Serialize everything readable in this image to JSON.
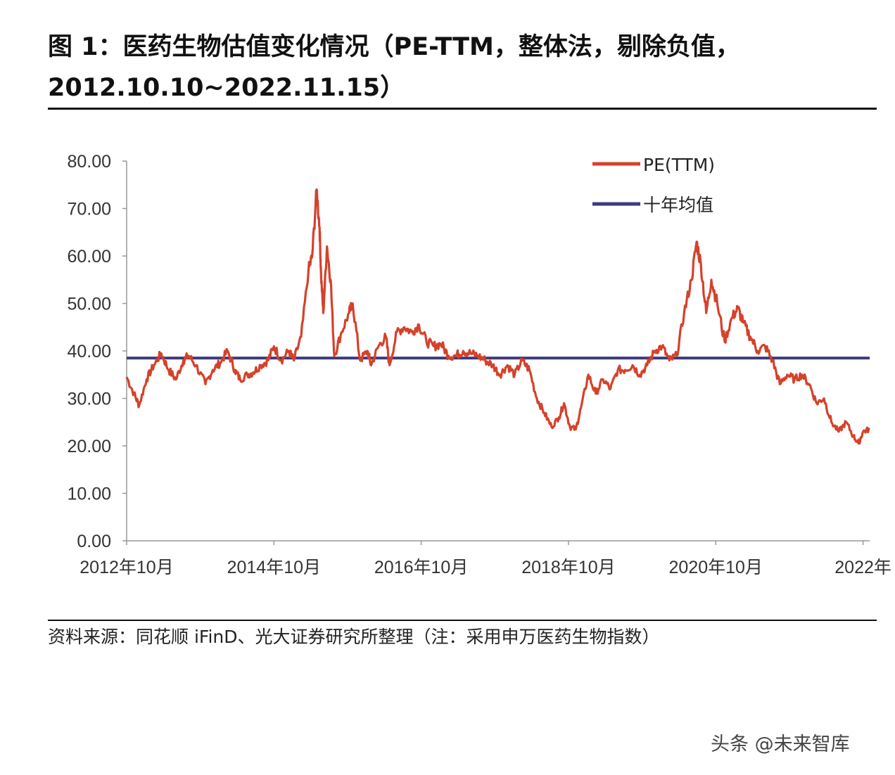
{
  "figure": {
    "title_line1": "图 1：医药生物估值变化情况（PE-TTM，整体法，剔除负值，",
    "title_line2": "2012.10.10~2022.11.15）",
    "source": "资料来源：同花顺 iFinD、光大证券研究所整理（注：采用申万医药生物指数）",
    "watermark": "头条 @未来智库"
  },
  "colors": {
    "pe": "#d5412a",
    "mean": "#3d3b7a",
    "axis": "#999999"
  },
  "chart_data": {
    "type": "line",
    "title": "",
    "xlabel": "",
    "ylabel": "",
    "ylim": [
      0,
      80
    ],
    "xlim": [
      2012.78,
      2022.87
    ],
    "y_ticks": [
      "0.00",
      "10.00",
      "20.00",
      "30.00",
      "40.00",
      "50.00",
      "60.00",
      "70.00",
      "80.00"
    ],
    "x_ticks": [
      {
        "x": 2012.78,
        "label": "2012年10月"
      },
      {
        "x": 2014.78,
        "label": "2014年10月"
      },
      {
        "x": 2016.78,
        "label": "2016年10月"
      },
      {
        "x": 2018.78,
        "label": "2018年10月"
      },
      {
        "x": 2020.78,
        "label": "2020年10月"
      },
      {
        "x": 2022.78,
        "label": "2022年"
      }
    ],
    "legend_position": "top-right",
    "series": [
      {
        "name": "PE(TTM)",
        "x": [
          2012.78,
          2012.88,
          2012.95,
          2013.05,
          2013.15,
          2013.25,
          2013.35,
          2013.45,
          2013.55,
          2013.62,
          2013.72,
          2013.85,
          2013.95,
          2014.05,
          2014.15,
          2014.25,
          2014.32,
          2014.42,
          2014.5,
          2014.6,
          2014.7,
          2014.78,
          2014.88,
          2014.98,
          2015.05,
          2015.15,
          2015.25,
          2015.3,
          2015.36,
          2015.4,
          2015.42,
          2015.45,
          2015.5,
          2015.55,
          2015.6,
          2015.7,
          2015.8,
          2015.85,
          2015.95,
          2016.05,
          2016.1,
          2016.2,
          2016.3,
          2016.35,
          2016.45,
          2016.55,
          2016.65,
          2016.75,
          2016.85,
          2016.95,
          2017.05,
          2017.15,
          2017.25,
          2017.35,
          2017.45,
          2017.55,
          2017.65,
          2017.75,
          2017.85,
          2017.95,
          2018.05,
          2018.15,
          2018.25,
          2018.35,
          2018.45,
          2018.55,
          2018.65,
          2018.72,
          2018.8,
          2018.88,
          2018.95,
          2019.05,
          2019.15,
          2019.25,
          2019.35,
          2019.45,
          2019.55,
          2019.65,
          2019.75,
          2019.85,
          2019.95,
          2020.05,
          2020.15,
          2020.25,
          2020.35,
          2020.45,
          2020.52,
          2020.58,
          2020.65,
          2020.72,
          2020.8,
          2020.9,
          2021.0,
          2021.08,
          2021.15,
          2021.25,
          2021.35,
          2021.45,
          2021.55,
          2021.65,
          2021.75,
          2021.85,
          2021.95,
          2022.05,
          2022.15,
          2022.25,
          2022.35,
          2022.45,
          2022.55,
          2022.65,
          2022.72,
          2022.78,
          2022.87
        ],
        "values": [
          34.5,
          31,
          28.5,
          34,
          37,
          39.5,
          36,
          34,
          38,
          39,
          37,
          33,
          36,
          37.5,
          40,
          36,
          34,
          35,
          35.5,
          37,
          38,
          41,
          38,
          40,
          38,
          43,
          57,
          60,
          74,
          66,
          56,
          48,
          62,
          55,
          39,
          44,
          48,
          50,
          38,
          40,
          37,
          41,
          43,
          37,
          44,
          45,
          44,
          45.5,
          42,
          41,
          41.5,
          39,
          39,
          40,
          39.5,
          39,
          38,
          37,
          35,
          37,
          35,
          38,
          36,
          30,
          27,
          24,
          26,
          29,
          24,
          23.5,
          28,
          35,
          31,
          34,
          32,
          36,
          36,
          37,
          35,
          37,
          40,
          41,
          38,
          39,
          48,
          55,
          63,
          58,
          48,
          55,
          50,
          42,
          47,
          49,
          46,
          43,
          40,
          41,
          38,
          33,
          35,
          34,
          35,
          33,
          29,
          30,
          25,
          23,
          25,
          22,
          20.5,
          23,
          23.5
        ]
      },
      {
        "name": "十年均值",
        "x": [
          2012.78,
          2022.87
        ],
        "values": [
          38.5,
          38.5
        ]
      }
    ]
  }
}
